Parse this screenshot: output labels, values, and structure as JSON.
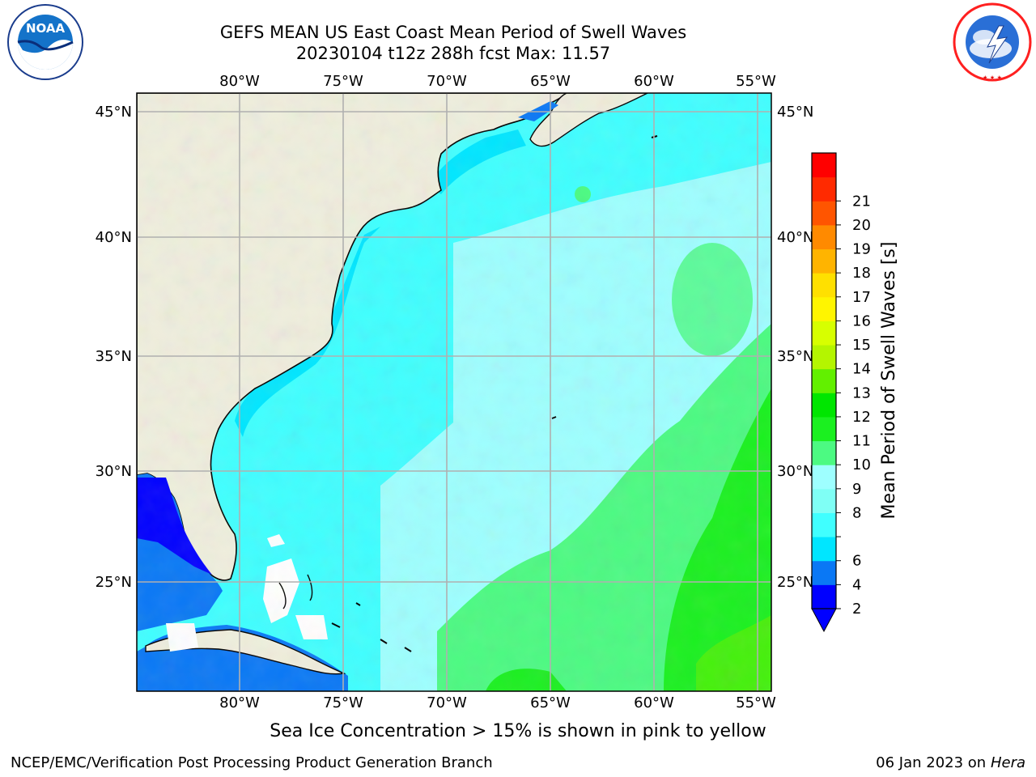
{
  "header": {
    "title_line1": "GEFS MEAN US East Coast Mean Period of Swell Waves",
    "title_line2": "20230104 t12z 288h fcst   Max: 11.57"
  },
  "logos": {
    "left": {
      "icon": "noaa-logo-icon",
      "text": "NOAA",
      "ring_text": "NATIONAL OCEANIC AND ATMOSPHERIC ADMINISTRATION · U.S. DEPARTMENT OF COMMERCE"
    },
    "right": {
      "icon": "nws-logo-icon",
      "ring_text": "NATIONAL WEATHER SERVICE"
    }
  },
  "map": {
    "lon_labels": [
      "80°W",
      "75°W",
      "70°W",
      "65°W",
      "60°W",
      "55°W"
    ],
    "lat_labels": [
      "45°N",
      "40°N",
      "35°N",
      "30°N",
      "25°N"
    ],
    "colors": {
      "land": "#efeedd",
      "grid": "#b0b0b0",
      "coast": "#000000",
      "no_data": "#ffffff"
    }
  },
  "colorbar": {
    "label": "Mean Period of Swell Waves [s]",
    "ticks": [
      "2",
      "4",
      "6",
      "7",
      "8",
      "9",
      "10",
      "11",
      "12",
      "13",
      "14",
      "15",
      "16",
      "17",
      "18",
      "19",
      "20",
      "21"
    ],
    "shown_tick_labels": [
      "2",
      "4",
      "6",
      "8",
      "9",
      "10",
      "11",
      "12",
      "13",
      "14",
      "15",
      "16",
      "17",
      "18",
      "19",
      "20",
      "21"
    ],
    "colors": [
      "#0000ff",
      "#0a78f5",
      "#00e6ff",
      "#40ffff",
      "#7ffff5",
      "#9effff",
      "#4cfa82",
      "#1bf020",
      "#00e600",
      "#62f000",
      "#b4f500",
      "#d7ff00",
      "#fff500",
      "#ffe000",
      "#ffb400",
      "#ff8a00",
      "#ff5500",
      "#ff2a00",
      "#ff0000"
    ],
    "under_color": "#0000ff"
  },
  "caption": "Sea Ice Concentration > 15% is shown in pink to yellow",
  "footer": {
    "left": "NCEP/EMC/Verification Post Processing Product Generation Branch",
    "right_prefix": "06 Jan 2023 on ",
    "right_machine": "Hera"
  }
}
